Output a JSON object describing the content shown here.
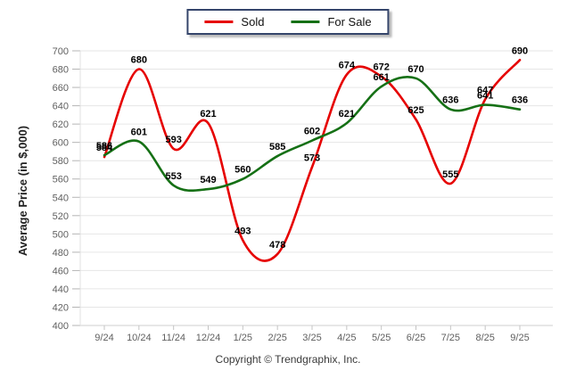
{
  "legend": {
    "border_color": "#35456b",
    "items": [
      {
        "label": "Sold",
        "color": "#e60000"
      },
      {
        "label": "For Sale",
        "color": "#157015"
      }
    ]
  },
  "chart_data": {
    "type": "line",
    "title": "",
    "xlabel": "",
    "ylabel": "Average Price (in $,000)",
    "categories": [
      "9/24",
      "10/24",
      "11/24",
      "12/24",
      "1/25",
      "2/25",
      "3/25",
      "4/25",
      "5/25",
      "6/25",
      "7/25",
      "8/25",
      "9/25"
    ],
    "series": [
      {
        "name": "Sold",
        "color": "#e60000",
        "values": [
          584,
          680,
          593,
          621,
          493,
          478,
          573,
          674,
          672,
          625,
          555,
          647,
          690
        ]
      },
      {
        "name": "For Sale",
        "color": "#157015",
        "values": [
          586,
          601,
          553,
          549,
          560,
          585,
          602,
          621,
          661,
          670,
          636,
          641,
          636
        ]
      }
    ],
    "ylim": [
      400,
      700
    ],
    "ytick_step": 20,
    "grid": true,
    "grid_color": "#e6e6e6",
    "tick_color": "#b5b5b5",
    "axis_text_color": "#5f5f5f",
    "data_label_color": "#000000",
    "legend_position": "top-center",
    "smooth": true
  },
  "footer": {
    "copyright": "Copyright © Trendgraphix, Inc."
  }
}
